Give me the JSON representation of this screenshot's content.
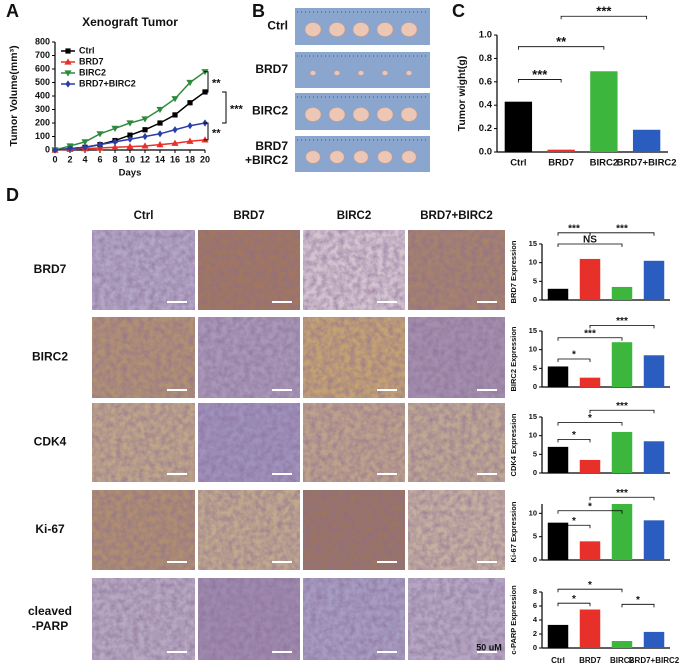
{
  "panel_labels": [
    "A",
    "B",
    "C",
    "D"
  ],
  "photo_panel": {
    "row_labels": [
      "Ctrl",
      "BRD7",
      "BIRC2",
      [
        "BRD7",
        "+BIRC2"
      ]
    ]
  },
  "ihc_panel": {
    "columns": [
      "Ctrl",
      "BRD7",
      "BIRC2",
      "BRD7+BIRC2"
    ],
    "rows": [
      "BRD7",
      "BIRC2",
      "CDK4",
      "Ki-67",
      [
        "cleaved",
        "-PARP"
      ]
    ],
    "scale": "50 uM"
  },
  "chart_data": [
    {
      "type": "line",
      "title": "Xenograft Tumor",
      "ylabel": "Tumor Volume(mm³)",
      "xlabel": "Days",
      "x": [
        0,
        2,
        4,
        6,
        8,
        10,
        12,
        14,
        16,
        18,
        20
      ],
      "series": [
        {
          "name": "Ctrl",
          "color": "#000000",
          "marker": "square",
          "values": [
            0,
            10,
            20,
            40,
            70,
            110,
            150,
            200,
            260,
            350,
            430
          ]
        },
        {
          "name": "BRD7",
          "color": "#e8302a",
          "marker": "triangle",
          "values": [
            0,
            5,
            10,
            15,
            20,
            25,
            30,
            40,
            50,
            65,
            75
          ]
        },
        {
          "name": "BIRC2",
          "color": "#2e8b3e",
          "marker": "triangle-down",
          "values": [
            0,
            30,
            60,
            120,
            160,
            200,
            230,
            300,
            380,
            500,
            580
          ]
        },
        {
          "name": "BRD7+BIRC2",
          "color": "#2b3ea8",
          "marker": "diamond",
          "values": [
            0,
            10,
            20,
            40,
            60,
            80,
            100,
            120,
            150,
            180,
            200
          ]
        }
      ],
      "xlim": [
        0,
        20
      ],
      "xticks": [
        0,
        2,
        4,
        6,
        8,
        10,
        12,
        14,
        16,
        18,
        20
      ],
      "ylim": [
        0,
        800
      ],
      "yticks": [
        0,
        100,
        200,
        300,
        400,
        500,
        600,
        700,
        800
      ],
      "legend": "upper left",
      "annotations": [
        "**",
        "***",
        "**"
      ]
    },
    {
      "type": "bar",
      "ylabel": "Tumor wight(g)",
      "categories": [
        "Ctrl",
        "BRD7",
        "BIRC2",
        "BRD7+BIRC2"
      ],
      "values": [
        0.43,
        0.02,
        0.69,
        0.19
      ],
      "colors": [
        "#000000",
        "#e8302a",
        "#3cb63c",
        "#2b5cc0"
      ],
      "ylim": [
        0,
        1
      ],
      "yticks": [
        {
          "value": 0,
          "label": "0.0"
        },
        0.2,
        0.4,
        0.6,
        0.8,
        {
          "value": 1,
          "label": "1.0"
        }
      ],
      "annotations": [
        "***",
        "**",
        "***"
      ]
    },
    {
      "type": "bar",
      "ylabel": "BRD7 Expression",
      "categories": [
        null,
        null,
        null,
        null
      ],
      "values": [
        3,
        11,
        3.5,
        10.5
      ],
      "colors": [
        "#000000",
        "#e8302a",
        "#3cb63c",
        "#2b5cc0"
      ],
      "ylim": [
        0,
        15
      ],
      "yticks": [
        0,
        5,
        10,
        15
      ],
      "annotations": [
        "***",
        "NS",
        "***"
      ]
    },
    {
      "type": "bar",
      "ylabel": "BIRC2 Expression",
      "categories": [
        null,
        null,
        null,
        null
      ],
      "values": [
        5.5,
        2.5,
        12,
        8.5
      ],
      "colors": [
        "#000000",
        "#e8302a",
        "#3cb63c",
        "#2b5cc0"
      ],
      "ylim": [
        0,
        15
      ],
      "yticks": [
        0,
        5,
        10,
        15
      ],
      "annotations": [
        "*",
        "***",
        "***"
      ]
    },
    {
      "type": "bar",
      "ylabel": "CDK4 Expression",
      "categories": [
        null,
        null,
        null,
        null
      ],
      "values": [
        7,
        3.5,
        11,
        8.5
      ],
      "colors": [
        "#000000",
        "#e8302a",
        "#3cb63c",
        "#2b5cc0"
      ],
      "ylim": [
        0,
        15
      ],
      "yticks": [
        0,
        5,
        10,
        15
      ],
      "annotations": [
        "*",
        "*",
        "***"
      ]
    },
    {
      "type": "bar",
      "ylabel": "Ki-67 Expression",
      "categories": [
        null,
        null,
        null,
        null
      ],
      "values": [
        8,
        4,
        12,
        8.5
      ],
      "colors": [
        "#000000",
        "#e8302a",
        "#3cb63c",
        "#2b5cc0"
      ],
      "ylim": [
        0,
        12
      ],
      "yticks": [
        0,
        5,
        10
      ],
      "annotations": [
        "*",
        "*",
        "***"
      ]
    },
    {
      "type": "bar",
      "ylabel": "c-PARP Expression",
      "categories": [
        "Ctrl",
        "BRD7",
        "BIRC2",
        "BRD7+BIRC2"
      ],
      "values": [
        3.3,
        5.5,
        1,
        2.3
      ],
      "colors": [
        "#000000",
        "#e8302a",
        "#3cb63c",
        "#2b5cc0"
      ],
      "ylim": [
        0,
        8
      ],
      "yticks": [
        0,
        2,
        4,
        6,
        8
      ],
      "annotations": [
        "*",
        "*",
        "*"
      ]
    }
  ]
}
